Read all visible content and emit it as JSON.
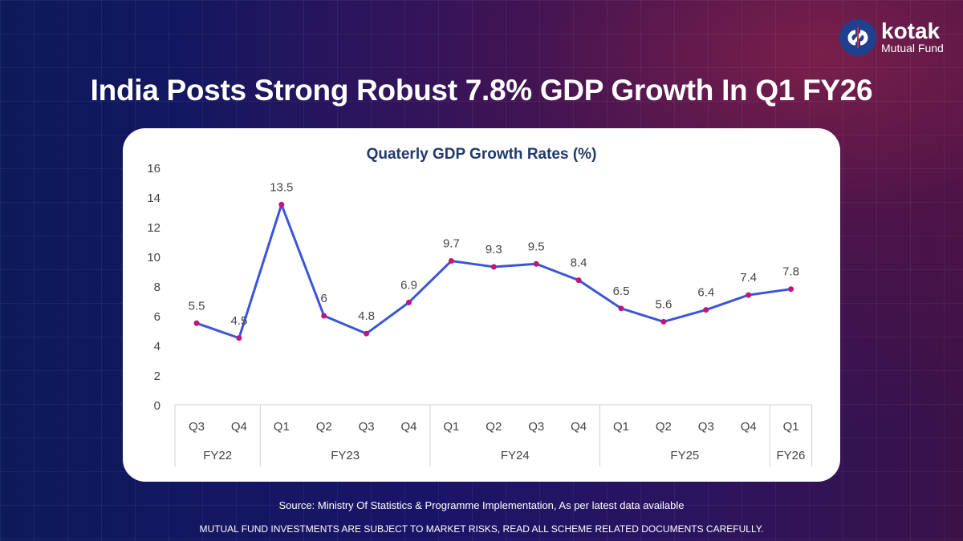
{
  "brand": {
    "name": "kotak",
    "sub": "Mutual Fund"
  },
  "headline": "India Posts Strong Robust 7.8% GDP Growth In Q1 FY26",
  "chart_data": {
    "type": "line",
    "title": "Quaterly GDP Growth Rates (%)",
    "ylim": [
      0,
      16
    ],
    "yticks": [
      0,
      2,
      4,
      6,
      8,
      10,
      12,
      14,
      16
    ],
    "categories": [
      "Q3",
      "Q4",
      "Q1",
      "Q2",
      "Q3",
      "Q4",
      "Q1",
      "Q2",
      "Q3",
      "Q4",
      "Q1",
      "Q2",
      "Q3",
      "Q4",
      "Q1"
    ],
    "groups": [
      {
        "label": "FY22",
        "count": 2
      },
      {
        "label": "FY23",
        "count": 4
      },
      {
        "label": "FY24",
        "count": 4
      },
      {
        "label": "FY25",
        "count": 4
      },
      {
        "label": "FY26",
        "count": 1
      }
    ],
    "values": [
      5.5,
      4.5,
      13.5,
      6,
      4.8,
      6.9,
      9.7,
      9.3,
      9.5,
      8.4,
      6.5,
      5.6,
      6.4,
      7.4,
      7.8
    ],
    "labels": [
      "5.5",
      "4.5",
      "13.5",
      "6",
      "4.8",
      "6.9",
      "9.7",
      "9.3",
      "9.5",
      "8.4",
      "6.5",
      "5.6",
      "6.4",
      "7.4",
      "7.8"
    ],
    "line_color": "#3a55d8",
    "marker_color": "#c0157a"
  },
  "source": "Source:  Ministry Of Statistics & Programme Implementation, As per latest data available",
  "disclaimer": "MUTUAL FUND INVESTMENTS ARE SUBJECT TO MARKET RISKS, READ ALL SCHEME RELATED DOCUMENTS CAREFULLY."
}
